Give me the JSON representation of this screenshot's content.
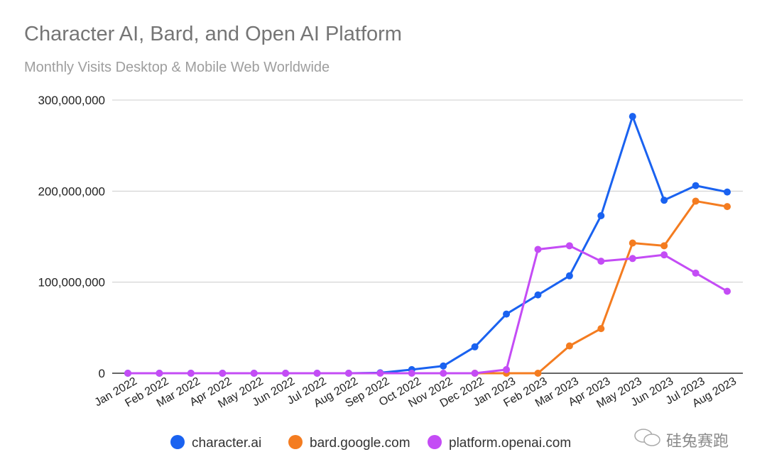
{
  "chart_data": {
    "type": "line",
    "title": "Character AI, Bard, and Open AI Platform",
    "subtitle": "Monthly Visits Desktop & Mobile Web Worldwide",
    "xlabel": "",
    "ylabel": "",
    "ylim": [
      0,
      300000000
    ],
    "yticks": [
      0,
      100000000,
      200000000,
      300000000
    ],
    "ytick_labels": [
      "0",
      "100,000,000",
      "200,000,000",
      "300,000,000"
    ],
    "grid": true,
    "legend_position": "bottom",
    "categories": [
      "Jan 2022",
      "Feb 2022",
      "Mar 2022",
      "Apr 2022",
      "May 2022",
      "Jun 2022",
      "Jul 2022",
      "Aug 2022",
      "Sep 2022",
      "Oct 2022",
      "Nov 2022",
      "Dec 2022",
      "Jan 2023",
      "Feb 2023",
      "Mar 2023",
      "Apr 2023",
      "May 2023",
      "Jun 2023",
      "Jul 2023",
      "Aug 2023"
    ],
    "series": [
      {
        "name": "character.ai",
        "color": "#1a62f0",
        "values": [
          0,
          0,
          0,
          0,
          0,
          0,
          0,
          0,
          500000,
          4000000,
          8000000,
          29000000,
          65000000,
          86000000,
          107000000,
          173000000,
          282000000,
          190000000,
          206000000,
          199000000
        ]
      },
      {
        "name": "bard.google.com",
        "color": "#f47c20",
        "values": [
          null,
          null,
          null,
          null,
          null,
          null,
          null,
          null,
          null,
          null,
          null,
          0,
          0,
          0,
          30000000,
          49000000,
          143000000,
          140000000,
          189000000,
          183000000
        ]
      },
      {
        "name": "platform.openai.com",
        "color": "#c44cf5",
        "values": [
          0,
          0,
          0,
          0,
          0,
          0,
          0,
          0,
          0,
          0,
          0,
          0,
          4000000,
          136000000,
          140000000,
          123000000,
          126000000,
          130000000,
          110000000,
          90000000
        ]
      }
    ]
  },
  "watermark": "硅兔赛跑"
}
